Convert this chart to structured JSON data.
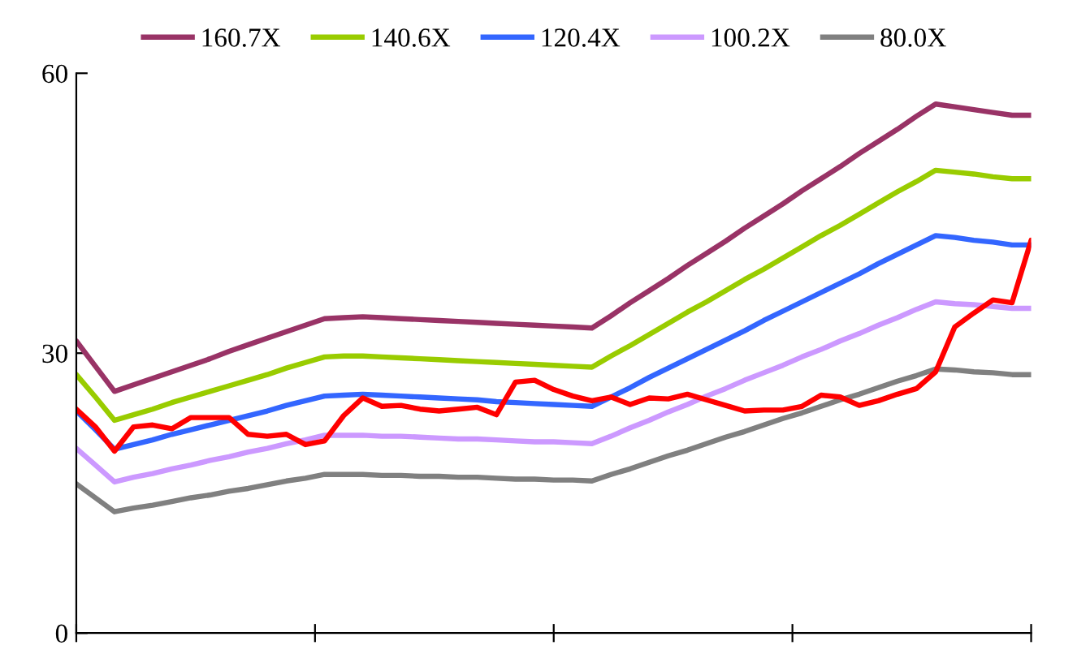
{
  "chart_data": {
    "type": "line",
    "categories": [
      null,
      null,
      null,
      null,
      null,
      null,
      null,
      null,
      null,
      null,
      null,
      null,
      null,
      null,
      null,
      null,
      null,
      null,
      null,
      null,
      null,
      null,
      null,
      null,
      null,
      null,
      null,
      null,
      null,
      null,
      null,
      null,
      null,
      null,
      null,
      null,
      null,
      null,
      null,
      null,
      null,
      null,
      null,
      null,
      null,
      null,
      null,
      null,
      null,
      null,
      null
    ],
    "ylim": [
      0,
      60
    ],
    "yticks": [
      0,
      30,
      60
    ],
    "legend": "top",
    "line_style": "solid",
    "series": [
      {
        "name": "160.7X",
        "color": "#993366",
        "values": [
          31.3,
          28.6,
          25.9,
          26.6,
          27.3,
          28.0,
          28.7,
          29.4,
          30.2,
          30.9,
          31.6,
          32.3,
          33.0,
          33.7,
          33.8,
          33.9,
          33.8,
          33.7,
          33.6,
          33.5,
          33.4,
          33.3,
          33.2,
          33.1,
          33.0,
          32.9,
          32.8,
          32.7,
          34.0,
          35.4,
          36.7,
          38.0,
          39.4,
          40.7,
          42.0,
          43.4,
          44.7,
          46.0,
          47.4,
          48.7,
          50.0,
          51.4,
          52.7,
          54.0,
          55.4,
          56.7,
          56.4,
          56.1,
          55.8,
          55.5,
          55.5
        ]
      },
      {
        "name": "140.6X",
        "color": "#99cc00",
        "values": [
          27.7,
          25.3,
          22.8,
          23.4,
          24.0,
          24.7,
          25.3,
          25.9,
          26.5,
          27.1,
          27.7,
          28.4,
          29.0,
          29.6,
          29.7,
          29.7,
          29.6,
          29.5,
          29.4,
          29.3,
          29.2,
          29.1,
          29.0,
          28.9,
          28.8,
          28.7,
          28.6,
          28.5,
          29.7,
          30.8,
          32.0,
          33.2,
          34.4,
          35.5,
          36.7,
          37.9,
          39.0,
          40.2,
          41.4,
          42.6,
          43.7,
          44.9,
          46.1,
          47.3,
          48.4,
          49.6,
          49.4,
          49.2,
          48.9,
          48.7,
          48.7
        ]
      },
      {
        "name": "120.4X",
        "color": "#3366ff",
        "values": [
          23.8,
          21.8,
          19.7,
          20.2,
          20.7,
          21.3,
          21.8,
          22.3,
          22.8,
          23.3,
          23.8,
          24.4,
          24.9,
          25.4,
          25.5,
          25.6,
          25.5,
          25.4,
          25.3,
          25.2,
          25.1,
          25.0,
          24.8,
          24.7,
          24.6,
          24.5,
          24.4,
          24.3,
          25.3,
          26.3,
          27.4,
          28.4,
          29.4,
          30.4,
          31.4,
          32.4,
          33.5,
          34.5,
          35.5,
          36.5,
          37.5,
          38.5,
          39.6,
          40.6,
          41.6,
          42.6,
          42.4,
          42.1,
          41.9,
          41.6,
          41.6
        ]
      },
      {
        "name": "100.2X",
        "color": "#cc99ff",
        "values": [
          19.8,
          18.0,
          16.2,
          16.7,
          17.1,
          17.6,
          18.0,
          18.5,
          18.9,
          19.4,
          19.8,
          20.3,
          20.7,
          21.2,
          21.2,
          21.2,
          21.1,
          21.1,
          21.0,
          20.9,
          20.8,
          20.8,
          20.7,
          20.6,
          20.5,
          20.5,
          20.4,
          20.3,
          21.1,
          22.0,
          22.8,
          23.7,
          24.5,
          25.4,
          26.2,
          27.1,
          27.9,
          28.7,
          29.6,
          30.4,
          31.3,
          32.1,
          33.0,
          33.8,
          34.7,
          35.5,
          35.3,
          35.2,
          35.0,
          34.8,
          34.8
        ]
      },
      {
        "name": "80.0X",
        "color": "#808080",
        "values": [
          16.0,
          14.5,
          13.0,
          13.4,
          13.7,
          14.1,
          14.5,
          14.8,
          15.2,
          15.5,
          15.9,
          16.3,
          16.6,
          17.0,
          17.0,
          17.0,
          16.9,
          16.9,
          16.8,
          16.8,
          16.7,
          16.7,
          16.6,
          16.5,
          16.5,
          16.4,
          16.4,
          16.3,
          17.0,
          17.6,
          18.3,
          19.0,
          19.6,
          20.3,
          21.0,
          21.6,
          22.3,
          23.0,
          23.6,
          24.3,
          25.0,
          25.6,
          26.3,
          27.0,
          27.6,
          28.3,
          28.2,
          28.0,
          27.9,
          27.7,
          27.7
        ]
      },
      {
        "color": "#ff0000",
        "values": [
          24.0,
          22.1,
          19.5,
          22.1,
          22.3,
          21.9,
          23.1,
          23.1,
          23.1,
          21.3,
          21.1,
          21.3,
          20.2,
          20.6,
          23.3,
          25.2,
          24.3,
          24.4,
          24.0,
          23.8,
          24.0,
          24.2,
          23.4,
          26.9,
          27.1,
          26.1,
          25.4,
          24.9,
          25.3,
          24.5,
          25.2,
          25.1,
          25.6,
          25.0,
          24.4,
          23.8,
          23.9,
          23.9,
          24.3,
          25.5,
          25.3,
          24.4,
          24.9,
          25.6,
          26.2,
          28.0,
          32.8,
          34.3,
          35.7,
          35.4,
          42.1
        ]
      }
    ]
  }
}
